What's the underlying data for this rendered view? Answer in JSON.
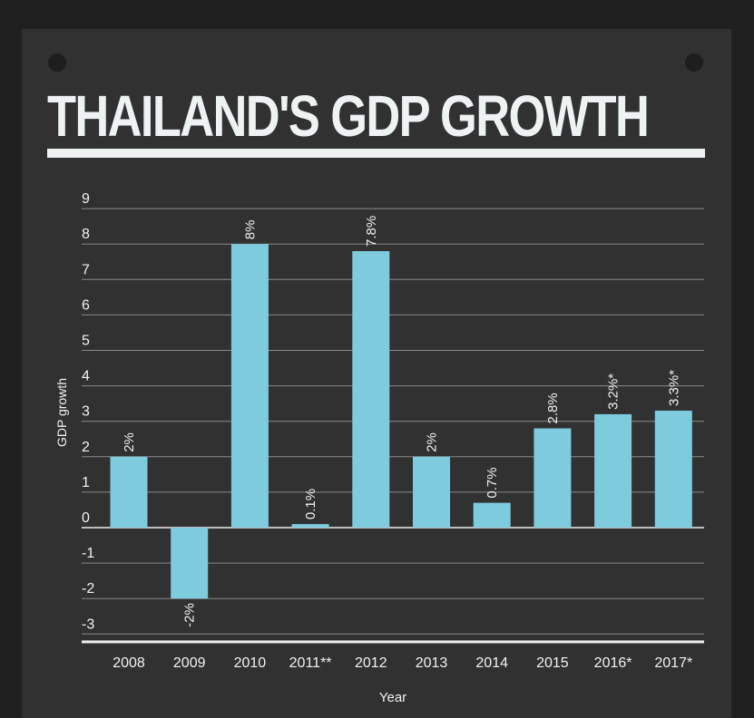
{
  "title": "THAILAND'S GDP GROWTH",
  "chart_data": {
    "type": "bar",
    "title": "THAILAND'S GDP GROWTH",
    "xlabel": "Year",
    "ylabel": "GDP growth",
    "categories": [
      "2008",
      "2009",
      "2010",
      "2011**",
      "2012",
      "2013",
      "2014",
      "2015",
      "2016*",
      "2017*"
    ],
    "values": [
      2,
      -2,
      8,
      0.1,
      7.8,
      2,
      0.7,
      2.8,
      3.2,
      3.3
    ],
    "data_labels": [
      "2%",
      "-2%",
      "8%",
      "0.1%",
      "7.8%",
      "2%",
      "0.7%",
      "2.8%",
      "3.2%*",
      "3.3%*"
    ],
    "ylim": [
      -3,
      9
    ],
    "yticks": [
      "-3",
      "-2",
      "-1",
      "0",
      "1",
      "2",
      "3",
      "4",
      "5",
      "6",
      "7",
      "8",
      "9"
    ],
    "grid": true,
    "bar_color": "#7ecbdd"
  }
}
